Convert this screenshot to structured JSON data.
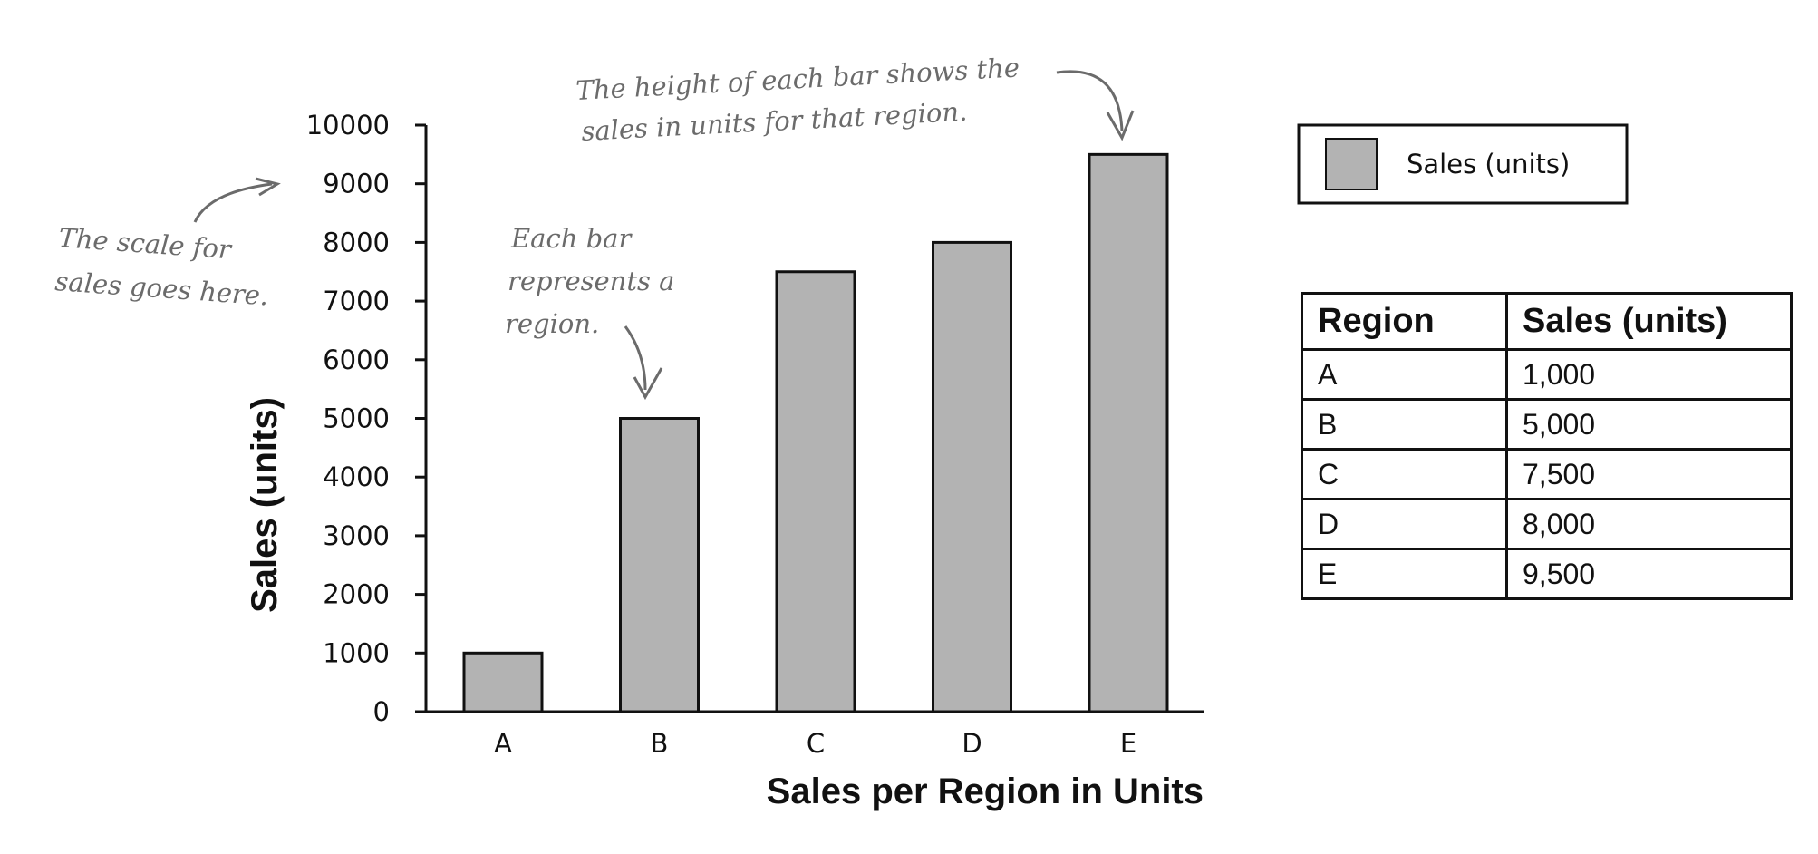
{
  "chart_data": {
    "type": "bar",
    "categories": [
      "A",
      "B",
      "C",
      "D",
      "E"
    ],
    "series": [
      {
        "name": "Sales (units)",
        "values": [
          1000,
          5000,
          7500,
          8000,
          9500
        ]
      }
    ],
    "xlabel": "Sales per Region in Units",
    "ylabel": "Sales (units)",
    "ylim": [
      0,
      10000
    ],
    "yticks": [
      0,
      1000,
      2000,
      3000,
      4000,
      5000,
      6000,
      7000,
      8000,
      9000,
      10000
    ],
    "grid": false,
    "legend_placement": "right",
    "bar_color": "#b3b3b3",
    "annotations": {
      "scale": [
        "The scale for",
        "sales goes here."
      ],
      "bar": [
        "Each bar",
        "represents a",
        "region."
      ],
      "height": [
        "The height of each bar shows the",
        "sales in units for that region."
      ]
    }
  },
  "legend": {
    "label": "Sales (units)"
  },
  "table": {
    "headers": [
      "Region",
      "Sales (units)"
    ],
    "rows": [
      [
        "A",
        "1,000"
      ],
      [
        "B",
        "5,000"
      ],
      [
        "C",
        "7,500"
      ],
      [
        "D",
        "8,000"
      ],
      [
        "E",
        "9,500"
      ]
    ]
  }
}
